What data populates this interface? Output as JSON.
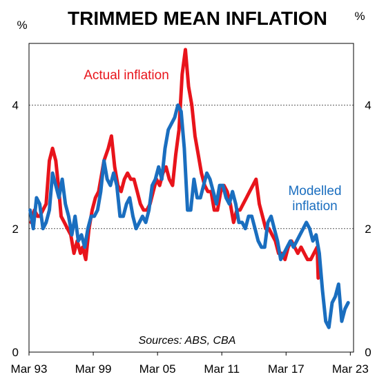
{
  "chart_data": {
    "type": "line",
    "title": "TRIMMED MEAN INFLATION",
    "ylabel_left": "%",
    "ylabel_right": "%",
    "source": "Sources: ABS, CBA",
    "ylim": [
      0,
      5
    ],
    "yticks": [
      "0",
      "2",
      "4"
    ],
    "xticks": [
      "Mar 93",
      "Mar 99",
      "Mar 05",
      "Mar 11",
      "Mar 17",
      "Mar 23"
    ],
    "xlim": [
      1993.0,
      2023.3
    ],
    "grid": "horizontal dotted at 2 and 4",
    "series": [
      {
        "name": "Actual inflation",
        "label_lines": [
          "Actual inflation"
        ],
        "color": "#e8141b",
        "x": [
          1993.2,
          1993.5,
          1993.8,
          1994.0,
          1994.3,
          1994.6,
          1994.9,
          1995.2,
          1995.5,
          1995.8,
          1996.0,
          1996.3,
          1996.6,
          1996.9,
          1997.2,
          1997.5,
          1997.8,
          1998.0,
          1998.3,
          1998.6,
          1998.9,
          1999.2,
          1999.5,
          1999.8,
          2000.0,
          2000.4,
          2000.7,
          2001.0,
          2001.3,
          2001.6,
          2001.9,
          2002.2,
          2002.5,
          2002.8,
          2003.1,
          2003.4,
          2003.7,
          2004.0,
          2004.3,
          2004.6,
          2004.9,
          2005.2,
          2005.5,
          2005.8,
          2006.1,
          2006.4,
          2006.7,
          2007.0,
          2007.3,
          2007.6,
          2007.9,
          2008.2,
          2008.5,
          2008.8,
          2009.1,
          2009.4,
          2009.7,
          2010.0,
          2010.3,
          2010.6,
          2010.9,
          2011.2,
          2011.5,
          2011.8,
          2012.1,
          2012.4,
          2012.7,
          2013.0,
          2013.3,
          2013.6,
          2013.9,
          2014.2,
          2014.5,
          2014.8,
          2015.1,
          2015.4,
          2015.7,
          2016.0,
          2016.3,
          2016.6,
          2016.9,
          2017.2,
          2017.5,
          2017.8,
          2018.1,
          2018.4,
          2018.7,
          2019.0,
          2019.3,
          2019.6,
          2019.9,
          2020.0
        ],
        "values": [
          2.1,
          2.3,
          2.2,
          2.2,
          2.3,
          2.4,
          3.1,
          3.3,
          3.1,
          2.6,
          2.2,
          2.1,
          2.0,
          1.9,
          1.6,
          1.8,
          1.6,
          1.7,
          1.5,
          2.0,
          2.3,
          2.5,
          2.6,
          2.9,
          3.1,
          3.3,
          3.5,
          3.0,
          2.7,
          2.6,
          2.8,
          2.9,
          2.8,
          2.8,
          2.6,
          2.4,
          2.3,
          2.3,
          2.4,
          2.6,
          2.8,
          2.7,
          2.9,
          3.0,
          2.8,
          2.7,
          3.2,
          3.6,
          4.5,
          4.9,
          4.3,
          4.0,
          3.5,
          3.2,
          2.9,
          2.7,
          2.6,
          2.6,
          2.3,
          2.3,
          2.6,
          2.7,
          2.6,
          2.4,
          2.1,
          2.3,
          2.3,
          2.4,
          2.5,
          2.6,
          2.7,
          2.8,
          2.4,
          2.2,
          2.0,
          2.0,
          1.9,
          1.8,
          1.6,
          1.6,
          1.5,
          1.7,
          1.8,
          1.7,
          1.6,
          1.7,
          1.6,
          1.5,
          1.5,
          1.6,
          1.7,
          1.2
        ]
      },
      {
        "name": "Modelled inflation",
        "label_lines": [
          "Modelled",
          "inflation"
        ],
        "color": "#1a6ebf",
        "x": [
          1993.1,
          1993.4,
          1993.7,
          1994.0,
          1994.3,
          1994.6,
          1994.9,
          1995.2,
          1995.5,
          1995.8,
          1996.1,
          1996.4,
          1996.7,
          1997.0,
          1997.3,
          1997.6,
          1997.9,
          1998.2,
          1998.5,
          1998.8,
          1999.1,
          1999.4,
          1999.7,
          2000.0,
          2000.3,
          2000.6,
          2000.9,
          2001.2,
          2001.5,
          2001.8,
          2002.1,
          2002.4,
          2002.7,
          2003.0,
          2003.3,
          2003.6,
          2003.9,
          2004.2,
          2004.5,
          2004.8,
          2005.1,
          2005.4,
          2005.7,
          2006.0,
          2006.3,
          2006.6,
          2006.9,
          2007.2,
          2007.5,
          2007.8,
          2008.1,
          2008.4,
          2008.7,
          2009.0,
          2009.3,
          2009.6,
          2009.9,
          2010.2,
          2010.5,
          2010.8,
          2011.1,
          2011.4,
          2011.7,
          2012.0,
          2012.3,
          2012.6,
          2012.9,
          2013.2,
          2013.5,
          2013.8,
          2014.1,
          2014.4,
          2014.7,
          2015.0,
          2015.3,
          2015.6,
          2015.9,
          2016.2,
          2016.5,
          2016.8,
          2017.1,
          2017.4,
          2017.7,
          2018.0,
          2018.3,
          2018.6,
          2018.9,
          2019.2,
          2019.5,
          2019.8,
          2020.1,
          2020.4,
          2020.7,
          2021.0,
          2021.3,
          2021.6,
          2021.9,
          2022.2,
          2022.5,
          2022.8
        ],
        "values": [
          2.3,
          2.0,
          2.5,
          2.4,
          2.0,
          2.1,
          2.3,
          2.9,
          2.7,
          2.5,
          2.8,
          2.4,
          2.2,
          1.9,
          2.2,
          1.8,
          1.9,
          1.7,
          2.0,
          2.2,
          2.2,
          2.3,
          2.6,
          3.1,
          2.8,
          2.7,
          2.9,
          2.7,
          2.2,
          2.2,
          2.4,
          2.5,
          2.2,
          2.0,
          2.1,
          2.2,
          2.1,
          2.3,
          2.7,
          2.8,
          3.0,
          2.8,
          3.3,
          3.6,
          3.7,
          3.8,
          4.0,
          3.9,
          3.3,
          2.3,
          2.3,
          2.8,
          2.5,
          2.5,
          2.7,
          2.9,
          2.8,
          2.6,
          2.4,
          2.7,
          2.7,
          2.5,
          2.4,
          2.6,
          2.4,
          2.1,
          2.1,
          2.0,
          2.2,
          2.2,
          2.0,
          1.8,
          1.7,
          1.7,
          2.1,
          2.2,
          2.0,
          1.8,
          1.5,
          1.6,
          1.7,
          1.8,
          1.7,
          1.8,
          1.9,
          2.0,
          2.1,
          2.0,
          1.8,
          1.9,
          1.6,
          1.0,
          0.5,
          0.4,
          0.8,
          0.9,
          1.1,
          0.5,
          0.7,
          0.8
        ]
      }
    ]
  }
}
